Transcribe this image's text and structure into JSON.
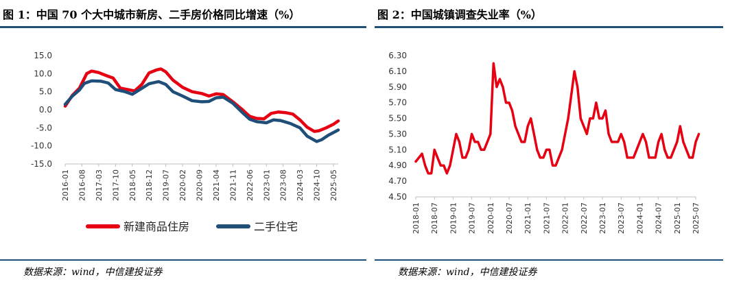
{
  "left": {
    "title": "图 1：中国 70 个大中城市新房、二手房价格同比增速（%）",
    "source": "数据来源：wind，中信建投证券",
    "chart_data": {
      "type": "line",
      "ylim": [
        -15,
        15
      ],
      "yticks": [
        "15.0",
        "10.0",
        "5.0",
        "0.0",
        "-5.0",
        "-10.0",
        "-15.0"
      ],
      "xticks": [
        "2016-01",
        "2016-08",
        "2017-03",
        "2017-10",
        "2018-05",
        "2018-12",
        "2019-07",
        "2020-02",
        "2020-09",
        "2021-04",
        "2021-11",
        "2022-06",
        "2023-01",
        "2023-08",
        "2024-03",
        "2024-10",
        "2025-05"
      ],
      "x_range": [
        "2016-01",
        "2025-07"
      ],
      "grid": false,
      "legend_position": "bottom",
      "series": [
        {
          "name": "新建商品住房",
          "color": "#e60012",
          "points": [
            [
              "2016-01",
              1.0
            ],
            [
              "2016-04",
              4.0
            ],
            [
              "2016-07",
              6.0
            ],
            [
              "2016-10",
              10.0
            ],
            [
              "2016-12",
              10.7
            ],
            [
              "2017-03",
              10.3
            ],
            [
              "2017-06",
              9.5
            ],
            [
              "2017-09",
              8.8
            ],
            [
              "2017-12",
              6.0
            ],
            [
              "2018-03",
              5.6
            ],
            [
              "2018-06",
              5.2
            ],
            [
              "2018-09",
              7.0
            ],
            [
              "2018-12",
              10.2
            ],
            [
              "2019-03",
              11.0
            ],
            [
              "2019-05",
              11.3
            ],
            [
              "2019-07",
              10.5
            ],
            [
              "2019-10",
              8.2
            ],
            [
              "2020-02",
              6.2
            ],
            [
              "2020-06",
              5.0
            ],
            [
              "2020-10",
              4.5
            ],
            [
              "2021-01",
              3.8
            ],
            [
              "2021-04",
              4.4
            ],
            [
              "2021-07",
              4.2
            ],
            [
              "2021-11",
              2.2
            ],
            [
              "2022-03",
              0.0
            ],
            [
              "2022-06",
              -1.8
            ],
            [
              "2022-09",
              -2.4
            ],
            [
              "2022-12",
              -2.5
            ],
            [
              "2023-03",
              -1.0
            ],
            [
              "2023-06",
              -0.6
            ],
            [
              "2023-09",
              -0.8
            ],
            [
              "2023-12",
              -1.2
            ],
            [
              "2024-03",
              -2.8
            ],
            [
              "2024-06",
              -4.8
            ],
            [
              "2024-09",
              -6.0
            ],
            [
              "2024-11",
              -5.8
            ],
            [
              "2025-02",
              -5.0
            ],
            [
              "2025-05",
              -4.0
            ],
            [
              "2025-07",
              -3.1
            ]
          ]
        },
        {
          "name": "二手住宅",
          "color": "#1f4e79",
          "points": [
            [
              "2016-01",
              1.5
            ],
            [
              "2016-04",
              3.8
            ],
            [
              "2016-07",
              5.5
            ],
            [
              "2016-09",
              7.3
            ],
            [
              "2016-12",
              8.0
            ],
            [
              "2017-04",
              7.9
            ],
            [
              "2017-07",
              7.4
            ],
            [
              "2017-10",
              5.6
            ],
            [
              "2018-02",
              5.0
            ],
            [
              "2018-05",
              4.3
            ],
            [
              "2018-08",
              5.5
            ],
            [
              "2018-12",
              7.2
            ],
            [
              "2019-04",
              7.8
            ],
            [
              "2019-07",
              7.0
            ],
            [
              "2019-10",
              5.0
            ],
            [
              "2020-02",
              3.8
            ],
            [
              "2020-06",
              2.5
            ],
            [
              "2020-10",
              2.2
            ],
            [
              "2021-01",
              2.3
            ],
            [
              "2021-04",
              3.3
            ],
            [
              "2021-07",
              3.5
            ],
            [
              "2021-11",
              1.8
            ],
            [
              "2022-03",
              -0.8
            ],
            [
              "2022-06",
              -2.6
            ],
            [
              "2022-09",
              -3.3
            ],
            [
              "2023-01",
              -3.6
            ],
            [
              "2023-04",
              -2.8
            ],
            [
              "2023-07",
              -3.0
            ],
            [
              "2023-11",
              -3.8
            ],
            [
              "2024-03",
              -5.0
            ],
            [
              "2024-06",
              -7.3
            ],
            [
              "2024-10",
              -8.8
            ],
            [
              "2024-12",
              -8.3
            ],
            [
              "2025-03",
              -7.0
            ],
            [
              "2025-07",
              -5.6
            ]
          ]
        }
      ]
    }
  },
  "right": {
    "title": "图 2：中国城镇调查失业率（%）",
    "source": "数据来源：wind，中信建投证券",
    "chart_data": {
      "type": "line",
      "ylim": [
        4.5,
        6.3
      ],
      "yticks": [
        "6.30",
        "6.10",
        "5.90",
        "5.70",
        "5.50",
        "5.30",
        "5.10",
        "4.90",
        "4.70",
        "4.50"
      ],
      "xticks": [
        "2018-01",
        "2018-07",
        "2019-01",
        "2019-07",
        "2020-01",
        "2020-07",
        "2021-01",
        "2021-07",
        "2022-01",
        "2022-07",
        "2023-01",
        "2023-07",
        "2024-01",
        "2024-07",
        "2025-01",
        "2025-07"
      ],
      "x_range": [
        "2018-01",
        "2025-07"
      ],
      "grid": false,
      "series": [
        {
          "name": "",
          "color": "#e60012",
          "points": [
            [
              "2018-01",
              4.95
            ],
            [
              "2018-03",
              5.05
            ],
            [
              "2018-04",
              4.9
            ],
            [
              "2018-05",
              4.8
            ],
            [
              "2018-06",
              4.8
            ],
            [
              "2018-07",
              5.1
            ],
            [
              "2018-08",
              5.0
            ],
            [
              "2018-09",
              4.9
            ],
            [
              "2018-10",
              4.9
            ],
            [
              "2018-11",
              4.8
            ],
            [
              "2018-12",
              4.9
            ],
            [
              "2019-02",
              5.3
            ],
            [
              "2019-03",
              5.2
            ],
            [
              "2019-04",
              5.0
            ],
            [
              "2019-05",
              5.0
            ],
            [
              "2019-06",
              5.1
            ],
            [
              "2019-07",
              5.3
            ],
            [
              "2019-08",
              5.2
            ],
            [
              "2019-09",
              5.2
            ],
            [
              "2019-10",
              5.1
            ],
            [
              "2019-11",
              5.1
            ],
            [
              "2019-12",
              5.2
            ],
            [
              "2020-01",
              5.3
            ],
            [
              "2020-02",
              6.2
            ],
            [
              "2020-03",
              5.9
            ],
            [
              "2020-04",
              6.0
            ],
            [
              "2020-05",
              5.9
            ],
            [
              "2020-06",
              5.7
            ],
            [
              "2020-07",
              5.7
            ],
            [
              "2020-08",
              5.6
            ],
            [
              "2020-09",
              5.4
            ],
            [
              "2020-10",
              5.3
            ],
            [
              "2020-11",
              5.2
            ],
            [
              "2020-12",
              5.2
            ],
            [
              "2021-01",
              5.4
            ],
            [
              "2021-02",
              5.5
            ],
            [
              "2021-03",
              5.3
            ],
            [
              "2021-04",
              5.1
            ],
            [
              "2021-05",
              5.0
            ],
            [
              "2021-06",
              5.0
            ],
            [
              "2021-07",
              5.1
            ],
            [
              "2021-08",
              5.1
            ],
            [
              "2021-09",
              4.9
            ],
            [
              "2021-10",
              4.9
            ],
            [
              "2021-11",
              5.0
            ],
            [
              "2021-12",
              5.1
            ],
            [
              "2022-01",
              5.3
            ],
            [
              "2022-02",
              5.5
            ],
            [
              "2022-03",
              5.8
            ],
            [
              "2022-04",
              6.1
            ],
            [
              "2022-05",
              5.9
            ],
            [
              "2022-06",
              5.5
            ],
            [
              "2022-07",
              5.4
            ],
            [
              "2022-08",
              5.3
            ],
            [
              "2022-09",
              5.5
            ],
            [
              "2022-10",
              5.5
            ],
            [
              "2022-11",
              5.7
            ],
            [
              "2022-12",
              5.5
            ],
            [
              "2023-01",
              5.5
            ],
            [
              "2023-02",
              5.6
            ],
            [
              "2023-03",
              5.3
            ],
            [
              "2023-04",
              5.2
            ],
            [
              "2023-05",
              5.2
            ],
            [
              "2023-06",
              5.2
            ],
            [
              "2023-07",
              5.3
            ],
            [
              "2023-08",
              5.2
            ],
            [
              "2023-09",
              5.0
            ],
            [
              "2023-10",
              5.0
            ],
            [
              "2023-11",
              5.0
            ],
            [
              "2023-12",
              5.1
            ],
            [
              "2024-01",
              5.2
            ],
            [
              "2024-02",
              5.3
            ],
            [
              "2024-03",
              5.2
            ],
            [
              "2024-04",
              5.0
            ],
            [
              "2024-05",
              5.0
            ],
            [
              "2024-06",
              5.0
            ],
            [
              "2024-07",
              5.2
            ],
            [
              "2024-08",
              5.3
            ],
            [
              "2024-09",
              5.1
            ],
            [
              "2024-10",
              5.0
            ],
            [
              "2024-11",
              5.0
            ],
            [
              "2024-12",
              5.1
            ],
            [
              "2025-01",
              5.2
            ],
            [
              "2025-02",
              5.4
            ],
            [
              "2025-03",
              5.2
            ],
            [
              "2025-04",
              5.1
            ],
            [
              "2025-05",
              5.0
            ],
            [
              "2025-06",
              5.0
            ],
            [
              "2025-07",
              5.2
            ],
            [
              "2025-08",
              5.3
            ]
          ]
        }
      ]
    }
  }
}
